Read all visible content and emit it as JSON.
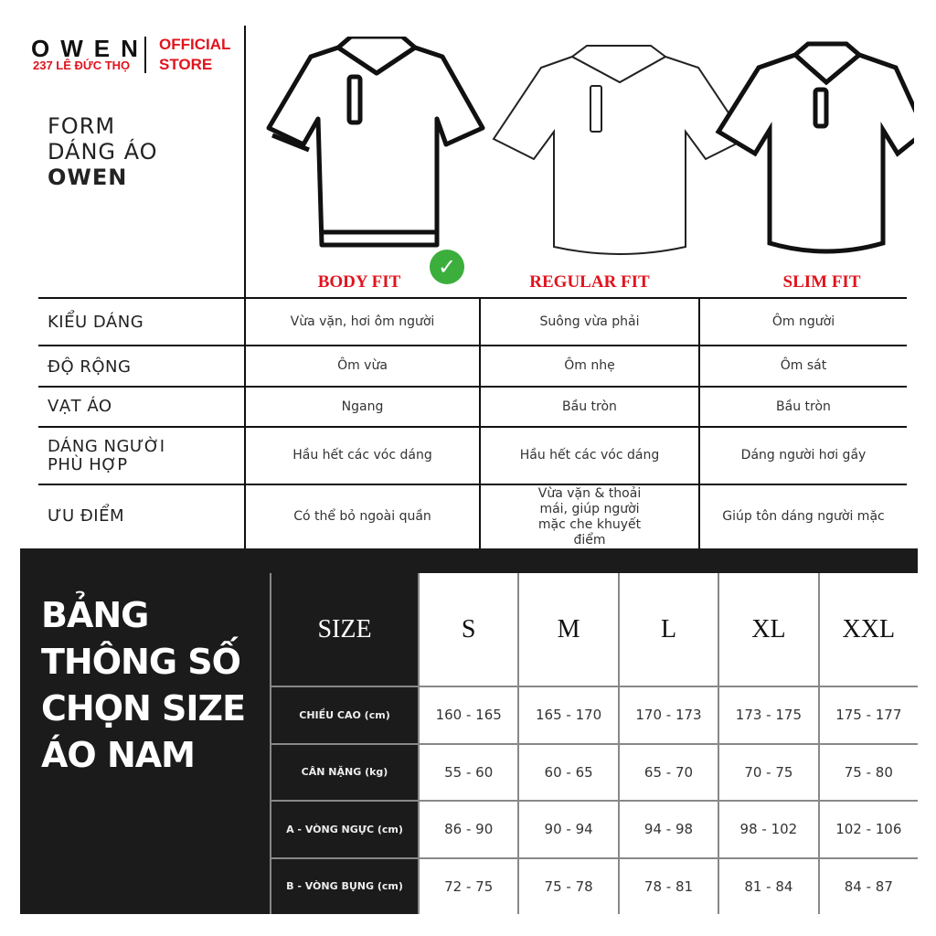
{
  "brand": {
    "logo": "OWEN",
    "address": "237 LÊ ĐỨC THỌ",
    "official": "OFFICIAL",
    "store": "STORE"
  },
  "form": {
    "line1": "FORM",
    "line2": "DÁNG ÁO",
    "line3": "OWEN"
  },
  "fits": [
    {
      "label": "BODY FIT",
      "selected": true
    },
    {
      "label": "REGULAR FIT"
    },
    {
      "label": "SLIM FIT"
    }
  ],
  "accent": "#e0141e",
  "check_color": "#3cae3c",
  "compare": [
    {
      "label": "KIỂU DÁNG",
      "values": [
        "Vừa vặn, hơi ôm người",
        "Suông vừa phải",
        "Ôm người"
      ]
    },
    {
      "label": "ĐỘ RỘNG",
      "values": [
        "Ôm vừa",
        "Ôm nhẹ",
        "Ôm sát"
      ]
    },
    {
      "label": "VẠT ÁO",
      "values": [
        "Ngang",
        "Bầu tròn",
        "Bầu tròn"
      ]
    },
    {
      "label": "DÁNG NGƯỜI PHÙ HỢP",
      "values": [
        "Hầu hết các vóc dáng",
        "Hầu hết các vóc dáng",
        "Dáng người hơi gầy"
      ]
    },
    {
      "label": "ƯU ĐIỂM",
      "values": [
        "Có thể bỏ ngoài quần",
        "Vừa vặn & thoải mái, giúp người mặc che khuyết điểm",
        "Giúp tôn dáng người mặc"
      ]
    }
  ],
  "size_title": {
    "l1": "BẢNG",
    "l2": "THÔNG SỐ",
    "l3": "CHỌN SIZE",
    "l4": "ÁO NAM"
  },
  "size_table": {
    "header": "SIZE",
    "sizes": [
      "S",
      "M",
      "L",
      "XL",
      "XXL"
    ],
    "rows": [
      {
        "label": "CHIỀU CAO (cm)",
        "values": [
          "160 - 165",
          "165 - 170",
          "170 - 173",
          "173 - 175",
          "175 - 177"
        ]
      },
      {
        "label": "CÂN NẶNG (kg)",
        "values": [
          "55 - 60",
          "60 - 65",
          "65 - 70",
          "70 - 75",
          "75 - 80"
        ]
      },
      {
        "label": "A - VÒNG NGỰC (cm)",
        "values": [
          "86 - 90",
          "90 - 94",
          "94 - 98",
          "98 - 102",
          "102 - 106"
        ]
      },
      {
        "label": "B - VÒNG BỤNG (cm)",
        "values": [
          "72 - 75",
          "75 - 78",
          "78 - 81",
          "81 - 84",
          "84 - 87"
        ]
      }
    ]
  }
}
